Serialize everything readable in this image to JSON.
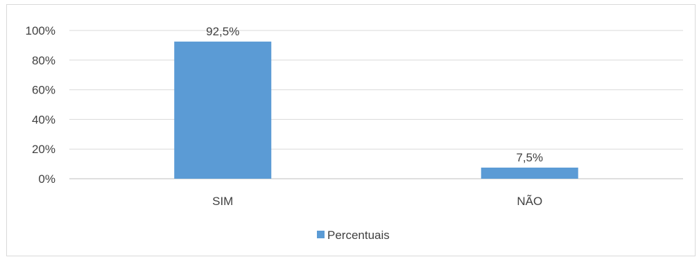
{
  "chart_data": {
    "type": "bar",
    "categories": [
      "SIM",
      "NÃO"
    ],
    "series": [
      {
        "name": "Percentuais",
        "values": [
          92.5,
          7.5
        ],
        "color": "#5b9bd5"
      }
    ],
    "data_labels": [
      "92,5%",
      "7,5%"
    ],
    "y_ticks": [
      "0%",
      "20%",
      "40%",
      "60%",
      "80%",
      "100%"
    ],
    "ylim": [
      0,
      100
    ],
    "grid": true,
    "legend_position": "bottom"
  }
}
